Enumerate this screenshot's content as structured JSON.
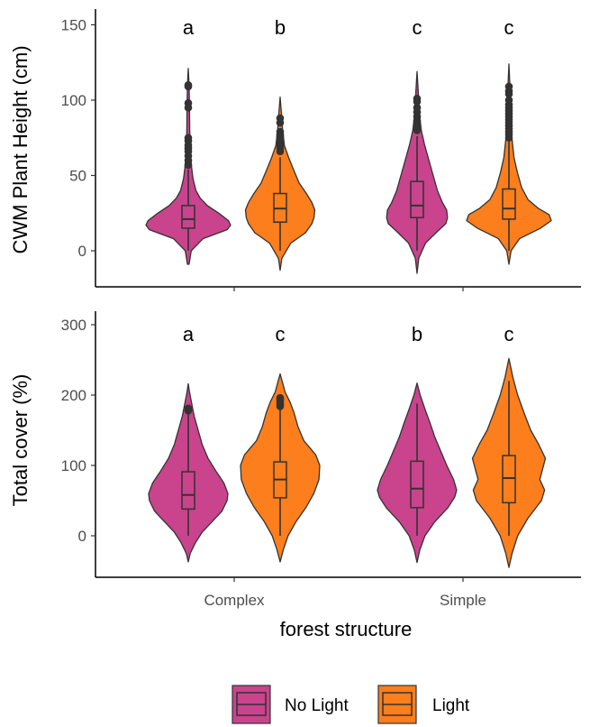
{
  "chart_data": [
    {
      "type": "violin",
      "ylabel": "CWM Plant Height (cm)",
      "ylim": [
        -22,
        158
      ],
      "yticks": [
        0,
        50,
        100,
        150
      ],
      "categories": [
        "Complex",
        "Simple"
      ],
      "groups": [
        {
          "category": "Complex",
          "series": "No Light",
          "letter": "a",
          "whisker": [
            0,
            54
          ],
          "q1": 15,
          "median": 21,
          "q3": 30,
          "outliers": [
            57,
            60,
            63,
            66,
            68,
            70,
            73,
            75,
            95,
            98,
            109,
            110
          ],
          "violin_min": -9,
          "violin_max": 121,
          "profile": [
            [
              -9,
              0.02
            ],
            [
              0,
              0.07
            ],
            [
              8,
              0.35
            ],
            [
              14,
              0.92
            ],
            [
              17,
              1.0
            ],
            [
              20,
              0.95
            ],
            [
              25,
              0.72
            ],
            [
              30,
              0.45
            ],
            [
              35,
              0.28
            ],
            [
              40,
              0.18
            ],
            [
              48,
              0.11
            ],
            [
              55,
              0.08
            ],
            [
              65,
              0.05
            ],
            [
              80,
              0.035
            ],
            [
              95,
              0.03
            ],
            [
              110,
              0.02
            ],
            [
              121,
              0.0
            ]
          ]
        },
        {
          "category": "Complex",
          "series": "Light",
          "letter": "b",
          "whisker": [
            0,
            62
          ],
          "q1": 19,
          "median": 28,
          "q3": 38,
          "outliers": [
            66,
            68,
            70,
            72,
            74,
            76,
            77,
            79,
            85,
            88
          ],
          "violin_min": -13,
          "violin_max": 102,
          "profile": [
            [
              -13,
              0.0
            ],
            [
              -5,
              0.04
            ],
            [
              5,
              0.25
            ],
            [
              12,
              0.6
            ],
            [
              18,
              0.75
            ],
            [
              22,
              0.8
            ],
            [
              27,
              0.82
            ],
            [
              32,
              0.75
            ],
            [
              38,
              0.62
            ],
            [
              45,
              0.45
            ],
            [
              55,
              0.3
            ],
            [
              62,
              0.2
            ],
            [
              70,
              0.1
            ],
            [
              80,
              0.06
            ],
            [
              90,
              0.035
            ],
            [
              102,
              0.0
            ]
          ]
        },
        {
          "category": "Simple",
          "series": "No Light",
          "letter": "c",
          "whisker": [
            0,
            76
          ],
          "q1": 22,
          "median": 30,
          "q3": 46,
          "outliers": [
            80,
            83,
            86,
            89,
            92,
            95,
            99,
            101
          ],
          "violin_min": -15,
          "violin_max": 119,
          "profile": [
            [
              -15,
              0.0
            ],
            [
              -5,
              0.04
            ],
            [
              5,
              0.2
            ],
            [
              12,
              0.45
            ],
            [
              18,
              0.68
            ],
            [
              22,
              0.72
            ],
            [
              27,
              0.7
            ],
            [
              32,
              0.6
            ],
            [
              40,
              0.48
            ],
            [
              50,
              0.38
            ],
            [
              60,
              0.28
            ],
            [
              70,
              0.18
            ],
            [
              80,
              0.1
            ],
            [
              90,
              0.06
            ],
            [
              105,
              0.03
            ],
            [
              119,
              0.0
            ]
          ]
        },
        {
          "category": "Simple",
          "series": "Light",
          "letter": "c",
          "whisker": [
            0,
            73
          ],
          "q1": 21,
          "median": 28,
          "q3": 41,
          "outliers": [
            75,
            77,
            79,
            81,
            83,
            85,
            87,
            89,
            91,
            93,
            95,
            97,
            100,
            104,
            106,
            109
          ],
          "violin_min": -9,
          "violin_max": 124,
          "profile": [
            [
              -9,
              0.0
            ],
            [
              0,
              0.05
            ],
            [
              8,
              0.25
            ],
            [
              15,
              0.75
            ],
            [
              20,
              1.0
            ],
            [
              24,
              0.95
            ],
            [
              28,
              0.7
            ],
            [
              34,
              0.45
            ],
            [
              42,
              0.3
            ],
            [
              52,
              0.2
            ],
            [
              62,
              0.12
            ],
            [
              75,
              0.07
            ],
            [
              90,
              0.04
            ],
            [
              105,
              0.03
            ],
            [
              124,
              0.0
            ]
          ]
        }
      ]
    },
    {
      "type": "violin",
      "ylabel": "Total cover (%)",
      "xlabel": "forest structure",
      "ylim": [
        -60,
        305
      ],
      "yticks": [
        0,
        100,
        200,
        300
      ],
      "categories": [
        "Complex",
        "Simple"
      ],
      "groups": [
        {
          "category": "Complex",
          "series": "No Light",
          "letter": "a",
          "whisker": [
            0,
            175
          ],
          "q1": 38,
          "median": 58,
          "q3": 91,
          "outliers": [
            178,
            181
          ],
          "violin_min": -37,
          "violin_max": 216,
          "profile": [
            [
              -37,
              0.0
            ],
            [
              -25,
              0.05
            ],
            [
              -10,
              0.18
            ],
            [
              5,
              0.35
            ],
            [
              20,
              0.6
            ],
            [
              35,
              0.85
            ],
            [
              50,
              0.98
            ],
            [
              60,
              1.0
            ],
            [
              75,
              0.9
            ],
            [
              90,
              0.72
            ],
            [
              110,
              0.5
            ],
            [
              130,
              0.35
            ],
            [
              150,
              0.25
            ],
            [
              170,
              0.15
            ],
            [
              190,
              0.08
            ],
            [
              205,
              0.03
            ],
            [
              216,
              0.0
            ]
          ]
        },
        {
          "category": "Complex",
          "series": "Light",
          "letter": "c",
          "whisker": [
            0,
            181
          ],
          "q1": 54,
          "median": 80,
          "q3": 105,
          "outliers": [
            184,
            187,
            190,
            193,
            196
          ],
          "violin_min": -37,
          "violin_max": 230,
          "profile": [
            [
              -37,
              0.0
            ],
            [
              -20,
              0.08
            ],
            [
              0,
              0.2
            ],
            [
              20,
              0.4
            ],
            [
              40,
              0.65
            ],
            [
              60,
              0.85
            ],
            [
              80,
              0.98
            ],
            [
              100,
              1.0
            ],
            [
              115,
              0.9
            ],
            [
              135,
              0.6
            ],
            [
              155,
              0.45
            ],
            [
              175,
              0.35
            ],
            [
              190,
              0.25
            ],
            [
              205,
              0.12
            ],
            [
              220,
              0.05
            ],
            [
              230,
              0.0
            ]
          ]
        },
        {
          "category": "Simple",
          "series": "No Light",
          "letter": "b",
          "whisker": [
            0,
            188
          ],
          "q1": 40,
          "median": 67,
          "q3": 106,
          "outliers": [],
          "violin_min": -38,
          "violin_max": 217,
          "profile": [
            [
              -38,
              0.0
            ],
            [
              -20,
              0.07
            ],
            [
              0,
              0.2
            ],
            [
              20,
              0.45
            ],
            [
              40,
              0.78
            ],
            [
              55,
              0.95
            ],
            [
              65,
              1.0
            ],
            [
              80,
              0.92
            ],
            [
              100,
              0.75
            ],
            [
              120,
              0.6
            ],
            [
              140,
              0.45
            ],
            [
              160,
              0.33
            ],
            [
              180,
              0.2
            ],
            [
              200,
              0.08
            ],
            [
              217,
              0.0
            ]
          ]
        },
        {
          "category": "Simple",
          "series": "Light",
          "letter": "c",
          "whisker": [
            0,
            220
          ],
          "q1": 47,
          "median": 82,
          "q3": 114,
          "outliers": [],
          "violin_min": -45,
          "violin_max": 252,
          "profile": [
            [
              -45,
              0.0
            ],
            [
              -25,
              0.08
            ],
            [
              0,
              0.22
            ],
            [
              25,
              0.48
            ],
            [
              50,
              0.82
            ],
            [
              65,
              0.9
            ],
            [
              80,
              0.78
            ],
            [
              95,
              0.85
            ],
            [
              110,
              0.92
            ],
            [
              130,
              0.75
            ],
            [
              150,
              0.55
            ],
            [
              175,
              0.38
            ],
            [
              200,
              0.22
            ],
            [
              225,
              0.1
            ],
            [
              252,
              0.0
            ]
          ]
        }
      ]
    }
  ],
  "legend": {
    "placement": "bottom",
    "items": [
      {
        "label": "No Light",
        "color": "#c9438d"
      },
      {
        "label": "Light",
        "color": "#fd7e1c"
      }
    ]
  },
  "colors": {
    "no_light": "#c9438d",
    "light": "#fd7e1c",
    "outline": "#333333",
    "axis": "#000000"
  }
}
